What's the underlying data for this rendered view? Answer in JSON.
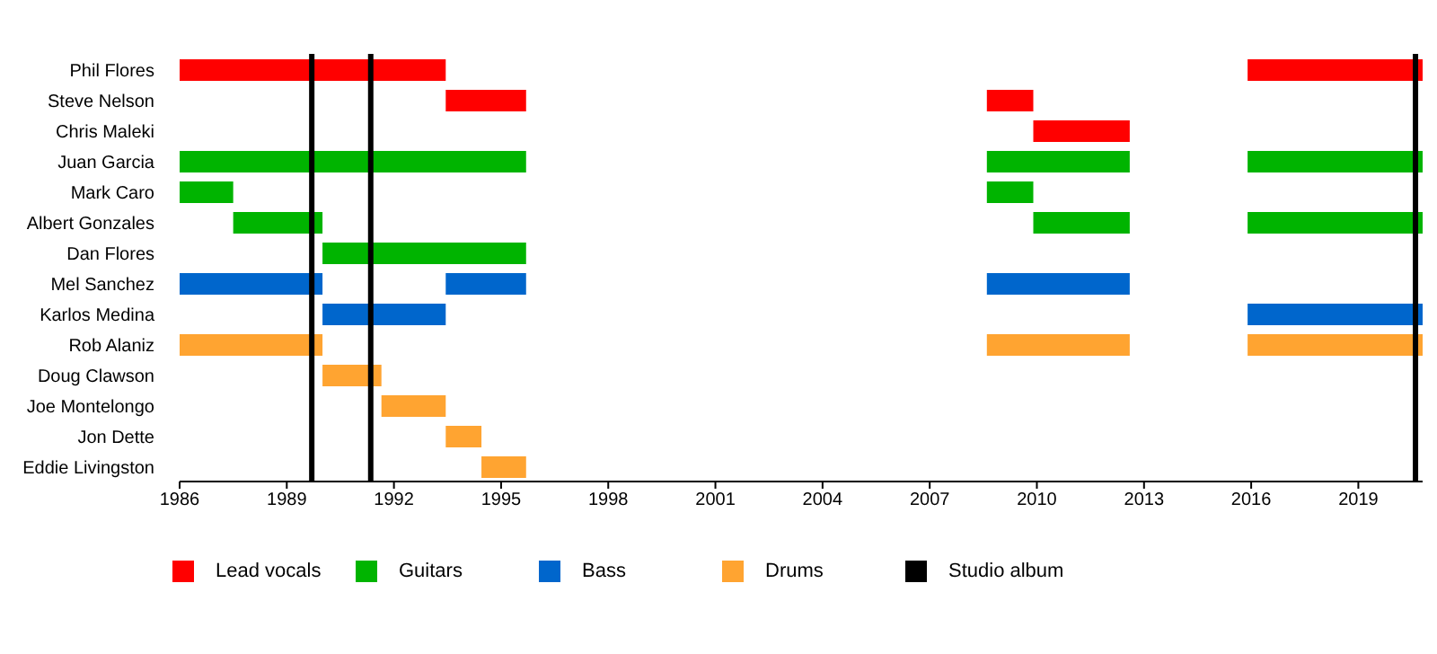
{
  "chart_data": {
    "type": "bar",
    "orientation": "horizontal",
    "categories": [
      "Phil Flores",
      "Steve Nelson",
      "Chris Maleki",
      "Juan Garcia",
      "Mark Caro",
      "Albert Gonzales",
      "Dan Flores",
      "Mel Sanchez",
      "Karlos Medina",
      "Rob Alaniz",
      "Doug Clawson",
      "Joe Montelongo",
      "Jon Dette",
      "Eddie Livingston"
    ],
    "xlim": [
      1986,
      2020.8
    ],
    "xticks": [
      1986,
      1989,
      1992,
      1995,
      1998,
      2001,
      2004,
      2007,
      2010,
      2013,
      2016,
      2019
    ],
    "legend": "bottom",
    "series": [
      {
        "name": "Lead vocals",
        "color": "#ff0000",
        "values": [
          7.45,
          2.25,
          null,
          null,
          null,
          null,
          null,
          null,
          null,
          null,
          null,
          null,
          null,
          null
        ],
        "base": [
          1986,
          1993.45,
          null,
          null,
          null,
          null,
          null,
          null,
          null,
          null,
          null,
          null,
          null,
          null
        ]
      },
      {
        "color": "#ff0000",
        "values": [
          null,
          1.3,
          2.7,
          null,
          null,
          null,
          null,
          null,
          null,
          null,
          null,
          null,
          null,
          null
        ],
        "base": [
          null,
          2008.6,
          2009.9,
          null,
          null,
          null,
          null,
          null,
          null,
          null,
          null,
          null,
          null,
          null
        ]
      },
      {
        "color": "#ff0000",
        "values": [
          4.9,
          null,
          null,
          null,
          null,
          null,
          null,
          null,
          null,
          null,
          null,
          null,
          null,
          null
        ],
        "base": [
          2015.9,
          null,
          null,
          null,
          null,
          null,
          null,
          null,
          null,
          null,
          null,
          null,
          null,
          null
        ]
      },
      {
        "name": "Guitars",
        "color": "#00b400",
        "values": [
          null,
          null,
          null,
          9.7,
          1.5,
          2.5,
          5.7,
          null,
          null,
          null,
          null,
          null,
          null,
          null
        ],
        "base": [
          null,
          null,
          null,
          1986,
          1986,
          1987.5,
          1990,
          null,
          null,
          null,
          null,
          null,
          null,
          null
        ]
      },
      {
        "color": "#00b400",
        "values": [
          null,
          null,
          null,
          4,
          1.3,
          2.7,
          null,
          null,
          null,
          null,
          null,
          null,
          null,
          null
        ],
        "base": [
          null,
          null,
          null,
          2008.6,
          2008.6,
          2009.9,
          null,
          null,
          null,
          null,
          null,
          null,
          null,
          null
        ]
      },
      {
        "color": "#00b400",
        "values": [
          null,
          null,
          null,
          4.9,
          null,
          4.9,
          null,
          null,
          null,
          null,
          null,
          null,
          null,
          null
        ],
        "base": [
          null,
          null,
          null,
          2015.9,
          null,
          2015.9,
          null,
          null,
          null,
          null,
          null,
          null,
          null,
          null
        ]
      },
      {
        "name": "Bass",
        "color": "#0066cc",
        "values": [
          null,
          null,
          null,
          null,
          null,
          null,
          null,
          4,
          3.45,
          null,
          null,
          null,
          null,
          null
        ],
        "base": [
          null,
          null,
          null,
          null,
          null,
          null,
          null,
          1986,
          1990,
          null,
          null,
          null,
          null,
          null
        ]
      },
      {
        "color": "#0066cc",
        "values": [
          null,
          null,
          null,
          null,
          null,
          null,
          null,
          2.25,
          null,
          null,
          null,
          null,
          null,
          null
        ],
        "base": [
          null,
          null,
          null,
          null,
          null,
          null,
          null,
          1993.45,
          null,
          null,
          null,
          null,
          null,
          null
        ]
      },
      {
        "color": "#0066cc",
        "values": [
          null,
          null,
          null,
          null,
          null,
          null,
          null,
          4,
          null,
          null,
          null,
          null,
          null,
          null
        ],
        "base": [
          null,
          null,
          null,
          null,
          null,
          null,
          null,
          2008.6,
          null,
          null,
          null,
          null,
          null,
          null
        ]
      },
      {
        "color": "#0066cc",
        "values": [
          null,
          null,
          null,
          null,
          null,
          null,
          null,
          null,
          4.9,
          null,
          null,
          null,
          null,
          null
        ],
        "base": [
          null,
          null,
          null,
          null,
          null,
          null,
          null,
          null,
          2015.9,
          null,
          null,
          null,
          null,
          null
        ]
      },
      {
        "name": "Drums",
        "color": "#ffa431",
        "values": [
          null,
          null,
          null,
          null,
          null,
          null,
          null,
          null,
          null,
          4,
          1.65,
          1.8,
          1,
          1.25
        ],
        "base": [
          null,
          null,
          null,
          null,
          null,
          null,
          null,
          null,
          null,
          1986,
          1990,
          1991.65,
          1993.45,
          1994.45
        ]
      },
      {
        "color": "#ffa431",
        "values": [
          null,
          null,
          null,
          null,
          null,
          null,
          null,
          null,
          null,
          4,
          null,
          null,
          null,
          null
        ],
        "base": [
          null,
          null,
          null,
          null,
          null,
          null,
          null,
          null,
          null,
          2008.6,
          null,
          null,
          null,
          null
        ]
      },
      {
        "color": "#ffa431",
        "values": [
          null,
          null,
          null,
          null,
          null,
          null,
          null,
          null,
          null,
          4.9,
          null,
          null,
          null,
          null
        ],
        "base": [
          null,
          null,
          null,
          null,
          null,
          null,
          null,
          null,
          null,
          2015.9,
          null,
          null,
          null,
          null
        ]
      }
    ],
    "ref_lines": [
      {
        "axis": "x",
        "value": 1989.7,
        "label": "Studio album",
        "color": "#000000"
      },
      {
        "axis": "x",
        "value": 1991.35,
        "color": "#000000"
      },
      {
        "axis": "x",
        "value": 2020.6,
        "color": "#000000"
      }
    ]
  }
}
